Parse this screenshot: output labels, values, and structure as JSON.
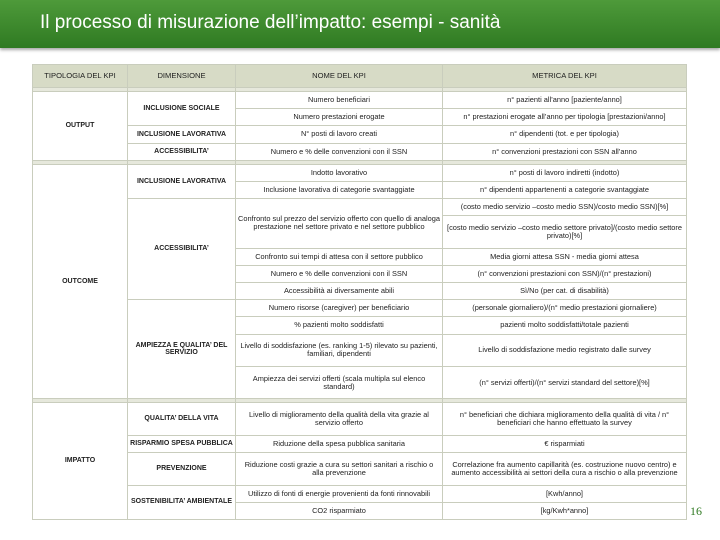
{
  "header": {
    "title": "Il processo di misurazione dell’impatto: esempi - sanità"
  },
  "table": {
    "columns": [
      "TIPOLOGIA DEL KPI",
      "DIMENSIONE",
      "NOME DEL KPI",
      "METRICA  DEL KPI"
    ],
    "groups": [
      {
        "type": "OUTPUT",
        "dimensions": [
          {
            "label": "INCLUSIONE SOCIALE",
            "kpis": [
              {
                "name": "Numero beneficiari",
                "metrics": [
                  "n° pazienti all’anno [paziente/anno]"
                ]
              },
              {
                "name": "Numero prestazioni erogate",
                "metrics": [
                  "n° prestazioni erogate all’anno per tipologia  [prestazioni/anno]"
                ]
              }
            ]
          },
          {
            "label": "INCLUSIONE LAVORATIVA",
            "kpis": [
              {
                "name": "N° posti di lavoro creati",
                "metrics": [
                  "n° dipendenti (tot. e per tipologia)"
                ]
              }
            ]
          },
          {
            "label": "ACCESSIBILITA’",
            "kpis": [
              {
                "name": "Numero e % delle convenzioni con il SSN",
                "metrics": [
                  "n° convenzioni prestazioni con SSN all’anno"
                ]
              }
            ]
          }
        ]
      },
      {
        "type": "OUTCOME",
        "dimensions": [
          {
            "label": "INCLUSIONE LAVORATIVA",
            "kpis": [
              {
                "name": "Indotto lavorativo",
                "metrics": [
                  "n° posti di lavoro indiretti (indotto)"
                ]
              },
              {
                "name": "Inclusione lavorativa di categorie svantaggiate",
                "metrics": [
                  "n° dipendenti appartenenti a categorie svantaggiate"
                ]
              }
            ]
          },
          {
            "label": "ACCESSIBILITA’",
            "kpis": [
              {
                "name": "Confronto sul prezzo del servizio offerto con quello di analoga prestazione nel settore privato e nel settore pubblico",
                "metrics": [
                  "(costo medio servizio –costo medio SSN)/costo medio SSN)[%]",
                  "[costo medio servizio –costo medio settore privato]/(costo medio settore privato)[%]"
                ]
              },
              {
                "name": "Confronto sui tempi di attesa con il settore pubblico",
                "metrics": [
                  "Media giorni attesa SSN - media giorni attesa"
                ]
              },
              {
                "name": "Numero e % delle convenzioni con il SSN",
                "metrics": [
                  "(n° convenzioni prestazioni con SSN)/(n° prestazioni)"
                ]
              },
              {
                "name": "Accessibilità ai diversamente abili",
                "metrics": [
                  "Sì/No (per cat. di disabilità)"
                ]
              }
            ]
          },
          {
            "label": "AMPIEZZA E QUALITA’ DEL SERVIZIO",
            "kpis": [
              {
                "name": "Numero risorse (caregiver) per beneficiario",
                "metrics": [
                  "(personale giornaliero)/(n° medio prestazioni giornaliere)"
                ]
              },
              {
                "name": "% pazienti molto soddisfatti",
                "metrics": [
                  "pazienti molto soddisfatti/totale pazienti"
                ]
              },
              {
                "name": "Livello di soddisfazione (es. ranking 1-5) rilevato su pazienti, familiari, dipendenti",
                "metrics": [
                  "Livello di soddisfazione medio registrato dalle survey"
                ]
              },
              {
                "name": "Ampiezza dei servizi offerti (scala multipla sul elenco standard)",
                "metrics": [
                  "(n° servizi offerti)/(n° servizi standard del settore)[%]"
                ]
              }
            ]
          }
        ]
      },
      {
        "type": "IMPATTO",
        "dimensions": [
          {
            "label": "QUALITA’ DELLA VITA",
            "kpis": [
              {
                "name": "Livello di miglioramento della qualità della vita grazie al servizio offerto",
                "metrics": [
                  "n° beneficiari che dichiara miglioramento della qualità di vita / n° beneficiari che hanno effettuato la survey"
                ]
              }
            ]
          },
          {
            "label": "RISPARMIO SPESA PUBBLICA",
            "kpis": [
              {
                "name": "Riduzione della spesa pubblica sanitaria",
                "metrics": [
                  "€ risparmiati"
                ]
              }
            ]
          },
          {
            "label": "PREVENZIONE",
            "kpis": [
              {
                "name": "Riduzione costi grazie a cura su settori sanitari a rischio o alla prevenzione",
                "metrics": [
                  "Correlazione fra aumento capillarità (es. costruzione nuovo centro) e aumento accessibilità ai settori della cura a rischio o alla prevenzione"
                ]
              }
            ]
          },
          {
            "label": "SOSTENIBILITA’ AMBIENTALE",
            "kpis": [
              {
                "name": "Utilizzo di fonti di energie provenienti da fonti rinnovabili",
                "metrics": [
                  "[Kwh/anno]"
                ]
              },
              {
                "name": "CO2 risparmiato",
                "metrics": [
                  "[kg/Kwh*anno]"
                ]
              }
            ]
          }
        ]
      }
    ]
  },
  "page_number": "16"
}
